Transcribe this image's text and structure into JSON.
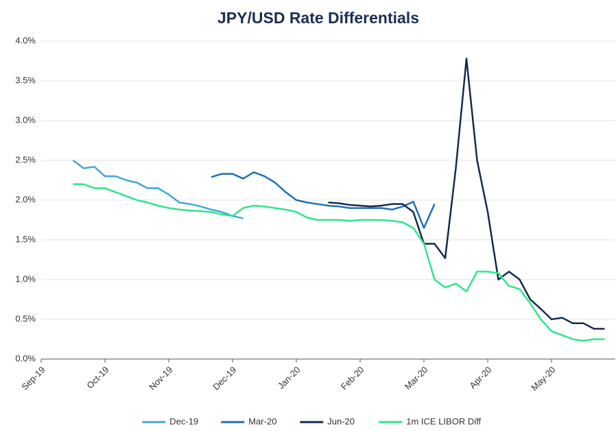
{
  "chart_data": {
    "type": "line",
    "title": "JPY/USD Rate Differentials",
    "categories": [
      "Sep-19",
      null,
      null,
      null,
      null,
      null,
      "Oct-19",
      null,
      null,
      null,
      null,
      null,
      "Nov-19",
      null,
      null,
      null,
      null,
      null,
      "Dec-19",
      null,
      null,
      null,
      null,
      null,
      "Jan-20",
      null,
      null,
      null,
      null,
      null,
      "Feb-20",
      null,
      null,
      null,
      null,
      null,
      "Mar-20",
      null,
      null,
      null,
      null,
      null,
      "Apr-20",
      null,
      null,
      null,
      null,
      null,
      "May-20",
      null,
      null,
      null,
      null,
      null
    ],
    "series": [
      {
        "name": "Dec-19",
        "color": "#3fa7d8",
        "values": [
          null,
          null,
          null,
          2.5,
          2.4,
          2.42,
          2.3,
          2.3,
          2.25,
          2.22,
          2.15,
          2.15,
          2.07,
          1.97,
          1.95,
          1.92,
          1.88,
          1.85,
          1.8,
          1.77,
          null,
          null,
          null,
          null,
          null,
          null,
          null,
          null,
          null,
          null,
          null,
          null,
          null,
          null,
          null,
          null,
          null,
          null,
          null,
          null,
          null,
          null,
          null,
          null,
          null,
          null,
          null,
          null,
          null,
          null,
          null,
          null,
          null,
          null
        ]
      },
      {
        "name": "Mar-20",
        "color": "#1f6fb4",
        "values": [
          null,
          null,
          null,
          null,
          null,
          null,
          null,
          null,
          null,
          null,
          null,
          null,
          null,
          null,
          null,
          null,
          2.29,
          2.33,
          2.33,
          2.27,
          2.35,
          2.3,
          2.22,
          2.1,
          2.0,
          1.97,
          1.95,
          1.93,
          1.92,
          1.9,
          1.9,
          1.9,
          1.9,
          1.88,
          1.92,
          1.98,
          1.65,
          1.95,
          null,
          null,
          null,
          null,
          null,
          null,
          null,
          null,
          null,
          null,
          null,
          null,
          null,
          null,
          null,
          null
        ]
      },
      {
        "name": "Jun-20",
        "color": "#132a4f",
        "values": [
          null,
          null,
          null,
          null,
          null,
          null,
          null,
          null,
          null,
          null,
          null,
          null,
          null,
          null,
          null,
          null,
          null,
          null,
          null,
          null,
          null,
          null,
          null,
          null,
          null,
          null,
          null,
          1.97,
          1.96,
          1.94,
          1.93,
          1.92,
          1.93,
          1.95,
          1.95,
          1.85,
          1.45,
          1.45,
          1.27,
          2.4,
          3.78,
          2.5,
          1.85,
          1.0,
          1.1,
          1.0,
          0.75,
          0.63,
          0.5,
          0.52,
          0.45,
          0.45,
          0.38,
          0.38
        ]
      },
      {
        "name": "1m ICE LIBOR Diff",
        "color": "#2ee68a",
        "values": [
          null,
          null,
          null,
          2.2,
          2.2,
          2.15,
          2.15,
          2.1,
          2.05,
          2.0,
          1.97,
          1.93,
          1.9,
          1.88,
          1.87,
          1.86,
          1.85,
          1.82,
          1.8,
          1.9,
          1.93,
          1.92,
          1.9,
          1.88,
          1.85,
          1.78,
          1.75,
          1.75,
          1.75,
          1.74,
          1.75,
          1.75,
          1.75,
          1.74,
          1.72,
          1.65,
          1.45,
          1.0,
          0.9,
          0.95,
          0.85,
          1.1,
          1.1,
          1.08,
          0.92,
          0.88,
          0.7,
          0.5,
          0.35,
          0.3,
          0.25,
          0.23,
          0.25,
          0.25
        ]
      }
    ],
    "ylim": [
      0,
      4
    ],
    "yticks": [
      {
        "value": 0,
        "label": "0.0%"
      },
      {
        "value": 0.5,
        "label": "0.5%"
      },
      {
        "value": 1,
        "label": "1.0%"
      },
      {
        "value": 1.5,
        "label": "1.5%"
      },
      {
        "value": 2,
        "label": "2.0%"
      },
      {
        "value": 2.5,
        "label": "2.5%"
      },
      {
        "value": 3,
        "label": "3.0%"
      },
      {
        "value": 3.5,
        "label": "3.5%"
      },
      {
        "value": 4,
        "label": "4.0%"
      }
    ],
    "grid": true,
    "legend": "bottom"
  }
}
